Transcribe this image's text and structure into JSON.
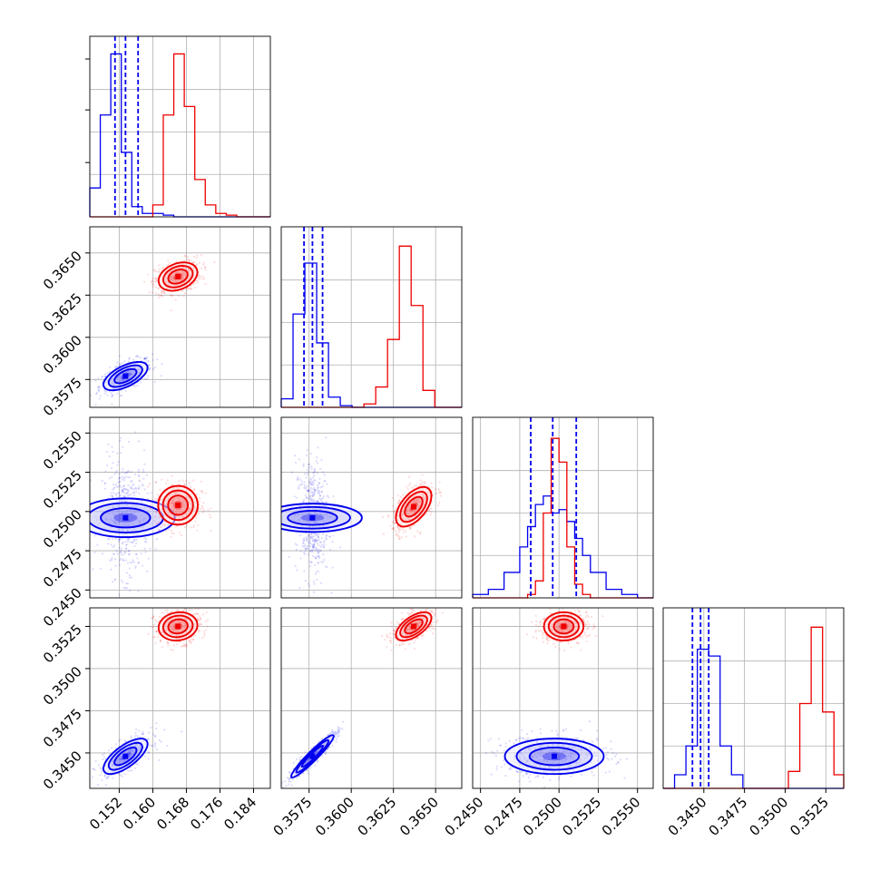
{
  "chart_data": {
    "type": "corner",
    "title": "",
    "parameters": [
      "",
      "",
      "",
      ""
    ],
    "grid": true,
    "colors": {
      "series_a": "#0000ee",
      "series_b": "#ee0000",
      "grid": "#b0b0b0",
      "axes": "#000000"
    },
    "axes": [
      {
        "lim": [
          0.145,
          0.188
        ],
        "ticks": [
          0.152,
          0.16,
          0.168,
          0.176,
          0.184
        ],
        "tick_labels": [
          "0.152",
          "0.160",
          "0.168",
          "0.176",
          "0.184"
        ]
      },
      {
        "lim": [
          0.35585,
          0.36655
        ],
        "ticks": [
          0.3575,
          0.36,
          0.3625,
          0.365
        ],
        "tick_labels": [
          "0.3575",
          "0.3600",
          "0.3625",
          "0.3650"
        ]
      },
      {
        "lim": [
          0.2445,
          0.256
        ],
        "ticks": [
          0.245,
          0.2475,
          0.25,
          0.2525,
          0.255
        ],
        "tick_labels": [
          "0.2450",
          "0.2475",
          "0.2500",
          "0.2525",
          "0.2550"
        ]
      },
      {
        "lim": [
          0.3425,
          0.3536
        ],
        "ticks": [
          0.345,
          0.3475,
          0.35,
          0.3525
        ],
        "tick_labels": [
          "0.3450",
          "0.3475",
          "0.3500",
          "0.3525"
        ]
      }
    ],
    "y_axes": {
      "1": {
        "lim": [
          0.35585,
          0.36655
        ],
        "ticks": [
          0.3575,
          0.36,
          0.3625,
          0.365
        ],
        "tick_labels": [
          "0.3575",
          "0.3600",
          "0.3625",
          "0.3650"
        ]
      },
      "2": {
        "lim": [
          0.2445,
          0.256
        ],
        "ticks": [
          0.245,
          0.2475,
          0.25,
          0.2525,
          0.255
        ],
        "tick_labels": [
          "0.2450",
          "0.2475",
          "0.2500",
          "0.2525",
          "0.2550"
        ]
      },
      "3": {
        "lim": [
          0.3429,
          0.3536
        ],
        "ticks": [
          0.345,
          0.3475,
          0.35,
          0.3525
        ],
        "tick_labels": [
          "0.3450",
          "0.3475",
          "0.3500",
          "0.3525"
        ]
      }
    },
    "quantile_lines": [
      {
        "panel": 0,
        "x": [
          0.151,
          0.1535,
          0.1565
        ]
      },
      {
        "panel": 1,
        "x": [
          0.3572,
          0.3577,
          0.3583
        ]
      },
      {
        "panel": 2,
        "x": [
          0.2482,
          0.2496,
          0.2511
        ]
      },
      {
        "panel": 3,
        "x": [
          0.3443,
          0.3448,
          0.3453
        ]
      }
    ],
    "histograms": [
      {
        "panel": 0,
        "edges": [
          0.145,
          0.1475,
          0.15,
          0.1525,
          0.155,
          0.1575,
          0.16,
          0.1625,
          0.165,
          0.1675,
          0.17,
          0.1725,
          0.175,
          0.1775,
          0.18,
          0.1825,
          0.185,
          0.188
        ],
        "series": [
          {
            "name": "",
            "color": "#0000ee",
            "counts": [
              0.17,
              0.6,
              0.96,
              0.38,
              0.06,
              0.02,
              0.02,
              0.01,
              0.0,
              0.0,
              0.0,
              0.0,
              0.0,
              0.0,
              0.0,
              0.0,
              0.0
            ]
          },
          {
            "name": "",
            "color": "#ee0000",
            "counts": [
              0.0,
              0.0,
              0.0,
              0.0,
              0.0,
              0.0,
              0.07,
              0.6,
              0.96,
              0.65,
              0.22,
              0.07,
              0.02,
              0.01,
              0.0,
              0.0,
              0.0
            ]
          }
        ]
      },
      {
        "panel": 1,
        "edges": [
          0.35585,
          0.35655,
          0.35725,
          0.35795,
          0.35865,
          0.35935,
          0.36005,
          0.36075,
          0.36145,
          0.36215,
          0.36285,
          0.36355,
          0.36425,
          0.36495,
          0.36565,
          0.36655
        ],
        "series": [
          {
            "name": "",
            "color": "#0000ee",
            "counts": [
              0.05,
              0.55,
              0.85,
              0.38,
              0.06,
              0.01,
              0.0,
              0.0,
              0.0,
              0.0,
              0.0,
              0.0,
              0.0,
              0.0,
              0.0
            ]
          },
          {
            "name": "",
            "color": "#ee0000",
            "counts": [
              0.0,
              0.0,
              0.0,
              0.0,
              0.0,
              0.0,
              0.0,
              0.02,
              0.12,
              0.4,
              0.95,
              0.6,
              0.1,
              0.0,
              0.0
            ]
          }
        ]
      },
      {
        "panel": 2,
        "edges": [
          0.2445,
          0.2455,
          0.2465,
          0.2475,
          0.248,
          0.2485,
          0.249,
          0.2495,
          0.25,
          0.2505,
          0.251,
          0.2515,
          0.252,
          0.253,
          0.254,
          0.255,
          0.256
        ],
        "series": [
          {
            "name": "",
            "color": "#0000ee",
            "counts": [
              0.02,
              0.05,
              0.15,
              0.3,
              0.42,
              0.55,
              0.6,
              0.5,
              0.52,
              0.45,
              0.35,
              0.25,
              0.15,
              0.05,
              0.02,
              0.0
            ]
          },
          {
            "name": "",
            "color": "#ee0000",
            "counts": [
              0.0,
              0.0,
              0.0,
              0.0,
              0.02,
              0.1,
              0.5,
              0.94,
              0.8,
              0.3,
              0.08,
              0.02,
              0.0,
              0.0,
              0.0,
              0.0
            ]
          }
        ]
      },
      {
        "panel": 3,
        "edges": [
          0.3425,
          0.3432,
          0.3439,
          0.3446,
          0.3453,
          0.346,
          0.3467,
          0.3474,
          0.3481,
          0.3488,
          0.3495,
          0.3502,
          0.3509,
          0.3516,
          0.3523,
          0.353,
          0.3536
        ],
        "series": [
          {
            "name": "",
            "color": "#0000ee",
            "counts": [
              0.0,
              0.08,
              0.25,
              0.82,
              0.78,
              0.25,
              0.08,
              0.0,
              0.0,
              0.0,
              0.0,
              0.0,
              0.0,
              0.0,
              0.0,
              0.0
            ]
          },
          {
            "name": "",
            "color": "#ee0000",
            "counts": [
              0.0,
              0.0,
              0.0,
              0.0,
              0.0,
              0.0,
              0.0,
              0.0,
              0.0,
              0.0,
              0.0,
              0.1,
              0.5,
              0.95,
              0.45,
              0.08
            ]
          }
        ]
      }
    ],
    "scatter_panels": [
      {
        "x_param": 0,
        "y_param": 1,
        "series": [
          {
            "name": "",
            "color": "#0000ee",
            "center": [
              0.1535,
              0.3577
            ],
            "sd": [
              0.0025,
              0.0004
            ],
            "corr": 0.6,
            "n": 480
          },
          {
            "name": "",
            "color": "#ee0000",
            "center": [
              0.166,
              0.3636
            ],
            "sd": [
              0.0022,
              0.0004
            ],
            "corr": 0.3,
            "n": 480
          }
        ]
      },
      {
        "x_param": 0,
        "y_param": 2,
        "series": [
          {
            "name": "",
            "color": "#0000ee",
            "center": [
              0.1535,
              0.2496
            ],
            "sd": [
              0.0022,
              0.0015
            ],
            "corr": 0.0,
            "n": 480
          },
          {
            "name": "",
            "color": "#ee0000",
            "center": [
              0.166,
              0.2504
            ],
            "sd": [
              0.0022,
              0.0006
            ],
            "corr": 0.0,
            "n": 480
          }
        ]
      },
      {
        "x_param": 1,
        "y_param": 2,
        "series": [
          {
            "name": "",
            "color": "#0000ee",
            "center": [
              0.3577,
              0.2496
            ],
            "sd": [
              0.0004,
              0.0015
            ],
            "corr": 0.0,
            "n": 480
          },
          {
            "name": "",
            "color": "#ee0000",
            "center": [
              0.3637,
              0.2503
            ],
            "sd": [
              0.0005,
              0.0006
            ],
            "corr": 0.55,
            "n": 480
          }
        ]
      },
      {
        "x_param": 0,
        "y_param": 3,
        "series": [
          {
            "name": "",
            "color": "#0000ee",
            "center": [
              0.1535,
              0.3448
            ],
            "sd": [
              0.0025,
              0.0005
            ],
            "corr": 0.7,
            "n": 480
          },
          {
            "name": "",
            "color": "#ee0000",
            "center": [
              0.166,
              0.3525
            ],
            "sd": [
              0.0022,
              0.0004
            ],
            "corr": 0.1,
            "n": 480
          }
        ]
      },
      {
        "x_param": 1,
        "y_param": 3,
        "series": [
          {
            "name": "",
            "color": "#0000ee",
            "center": [
              0.3577,
              0.3448
            ],
            "sd": [
              0.0006,
              0.0006
            ],
            "corr": 0.95,
            "n": 480
          },
          {
            "name": "",
            "color": "#ee0000",
            "center": [
              0.3637,
              0.3525
            ],
            "sd": [
              0.0005,
              0.0004
            ],
            "corr": 0.6,
            "n": 480
          }
        ]
      },
      {
        "x_param": 2,
        "y_param": 3,
        "series": [
          {
            "name": "",
            "color": "#0000ee",
            "center": [
              0.2497,
              0.3448
            ],
            "sd": [
              0.0015,
              0.0005
            ],
            "corr": 0.0,
            "n": 480
          },
          {
            "name": "",
            "color": "#ee0000",
            "center": [
              0.2503,
              0.3525
            ],
            "sd": [
              0.0006,
              0.0004
            ],
            "corr": 0.0,
            "n": 480
          }
        ]
      }
    ]
  }
}
